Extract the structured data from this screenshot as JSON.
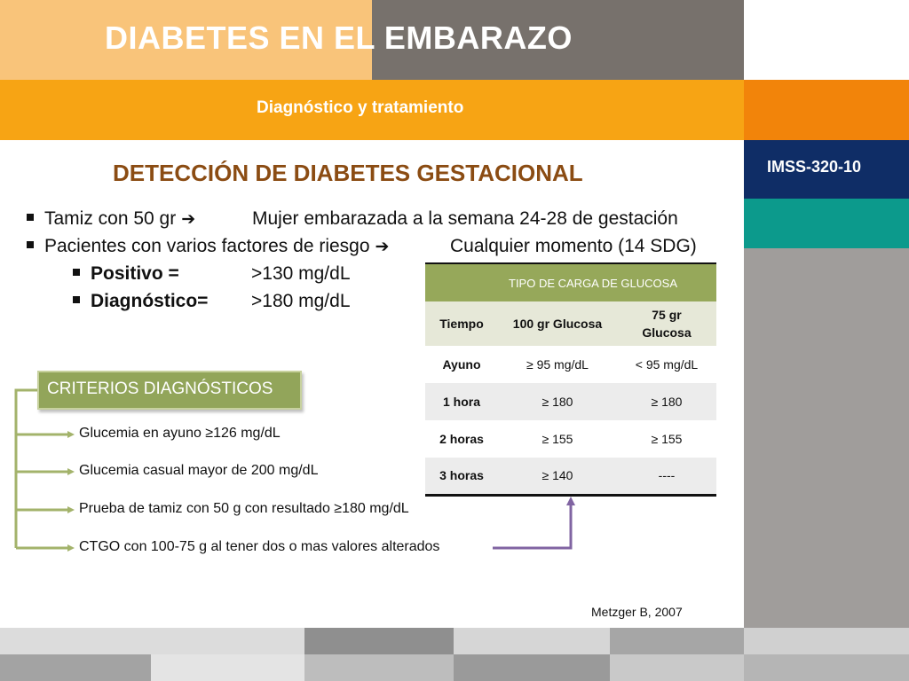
{
  "header": {
    "title": "DIABETES EN EL EMBARAZO",
    "subtitle": "Diagnóstico y tratamiento"
  },
  "side": {
    "code": "IMSS-320-10"
  },
  "main": {
    "title": "DETECCIÓN DE DIABETES GESTACIONAL",
    "bullets": [
      {
        "left": "Tamiz con 50 gr",
        "right": "Mujer embarazada a la semana 24-28 de gestación"
      },
      {
        "left": "Pacientes con varios factores de riesgo",
        "right": "Cualquier momento (14 SDG)"
      }
    ],
    "sub_bullets": [
      {
        "label": "Positivo =",
        "value": ">130 mg/dL"
      },
      {
        "label": "Diagnóstico=",
        "value": ">180 mg/dL"
      }
    ]
  },
  "table": {
    "group_header": "TIPO DE CARGA DE GLUCOSA",
    "columns": [
      "Tiempo",
      "100 gr Glucosa",
      "75 gr Glucosa"
    ],
    "rows": [
      [
        "Ayuno",
        "≥ 95 mg/dL",
        "< 95 mg/dL"
      ],
      [
        "1 hora",
        "≥ 180",
        "≥ 180"
      ],
      [
        "2 horas",
        "≥ 155",
        "≥ 155"
      ],
      [
        "3 horas",
        "≥ 140",
        "----"
      ]
    ]
  },
  "criteria": {
    "label": "CRITERIOS DIAGNÓSTICOS",
    "items": [
      "Glucemia en ayuno ≥126 mg/dL",
      "Glucemia casual mayor de 200 mg/dL",
      "Prueba de tamiz con 50 g con resultado ≥180 mg/dL",
      "CTGO con 100-75 g al tener dos o mas valores alterados"
    ]
  },
  "citation": "Metzger B, 2007",
  "colors": {
    "header_light": "#f9c47a",
    "header_gray": "#77716c",
    "orange": "#f7a414",
    "title_brown": "#8b4c13",
    "green": "#92a55a",
    "navy": "#0f2d66",
    "teal": "#0c9a8c",
    "purple": "#8064a2"
  },
  "icons": {
    "bullet": "square-bullet-icon",
    "arrow": "right-arrow-icon"
  }
}
